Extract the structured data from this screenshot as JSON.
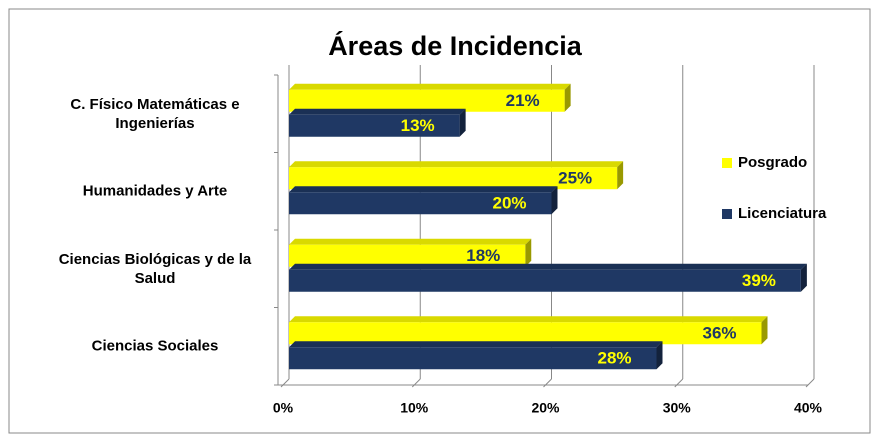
{
  "chart_data": {
    "type": "hbar",
    "title": "Áreas de Incidencia",
    "categories": [
      "C. Físico Matemáticas e Ingenierías",
      "Humanidades y Arte",
      "Ciencias Biológicas y de la Salud",
      "Ciencias Sociales"
    ],
    "series": [
      {
        "name": "Posgrado",
        "color": "#ffff00",
        "values": [
          21,
          25,
          18,
          36
        ],
        "value_labels": [
          "21%",
          "25%",
          "18%",
          "36%"
        ]
      },
      {
        "name": "Licenciatura",
        "color": "#1f3864",
        "values": [
          13,
          20,
          39,
          28
        ],
        "value_labels": [
          "13%",
          "20%",
          "39%",
          "28%"
        ]
      }
    ],
    "xlim": [
      0,
      40
    ],
    "xticks": [
      {
        "value": 0,
        "label": "0%"
      },
      {
        "value": 10,
        "label": "10%"
      },
      {
        "value": 20,
        "label": "20%"
      },
      {
        "value": 30,
        "label": "30%"
      },
      {
        "value": 40,
        "label": "40%"
      }
    ],
    "grid": true,
    "legend": "right"
  }
}
